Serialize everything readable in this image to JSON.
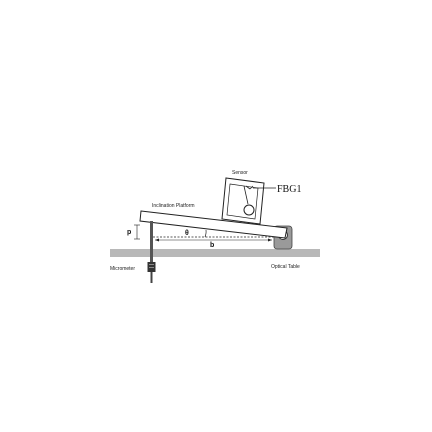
{
  "diagram": {
    "labels": {
      "sensor": "Sensor",
      "fbg": "FBG1",
      "platform": "Inclination Platform",
      "theta": "θ",
      "b": "b",
      "p": "p",
      "micrometer": "Micrometer",
      "optical_table": "Optical Table"
    },
    "colors": {
      "table": "#b8b8b8",
      "platform_fill": "#ffffff",
      "line": "#222222",
      "hinge": "#9a9a9a",
      "micrometer": "#333333"
    }
  }
}
